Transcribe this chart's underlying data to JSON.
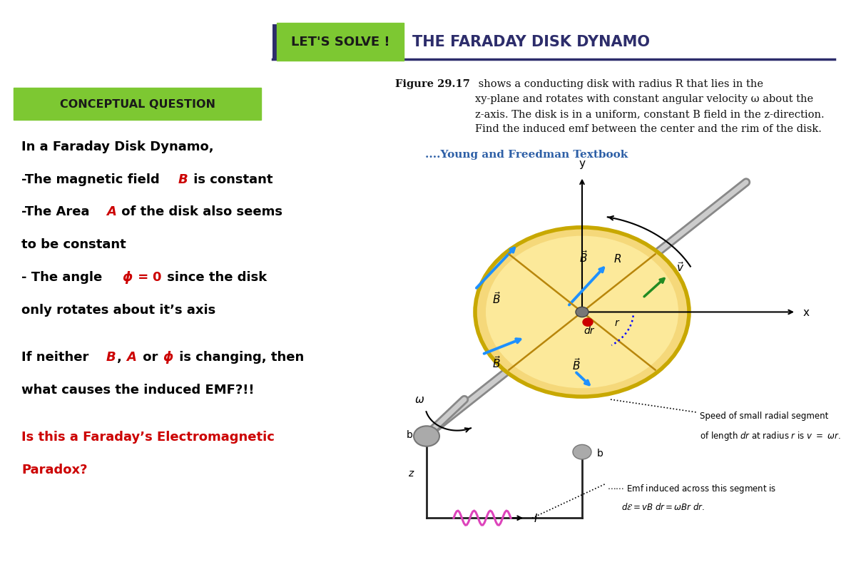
{
  "bg_color": "#ffffff",
  "title_box_color": "#7dc832",
  "title_box_text": "LET'S SOLVE !",
  "title_main_text": "THE FARADAY DISK DYNAMO",
  "title_main_color": "#2d2d6b",
  "underline_color": "#2d2d6b",
  "figure_text_bold": "Figure 29.17",
  "figure_text_rest": " shows a conducting disk with radius R that lies in the\nxy-plane and rotates with constant angular velocity ω about the\nz-axis. The disk is in a uniform, constant B field in the z-direction.\nFind the induced emf between the center and the rim of the disk.",
  "source_text": "....Young and Freedman Textbook",
  "source_color": "#2d5fa6",
  "conceptual_box_color": "#7dc832",
  "conceptual_box_text": "CONCEPTUAL QUESTION",
  "disk_color_inner": "#fce99a",
  "disk_color_outer": "#f5d87a",
  "disk_rim_color": "#c8a800",
  "rod_color_dark": "#888888",
  "rod_color_light": "#cccccc",
  "arrow_blue": "#1e90ff",
  "arrow_green": "#228b22",
  "text_black": "#000000",
  "text_red": "#cc0000",
  "text_dark_blue": "#2d2d6b"
}
